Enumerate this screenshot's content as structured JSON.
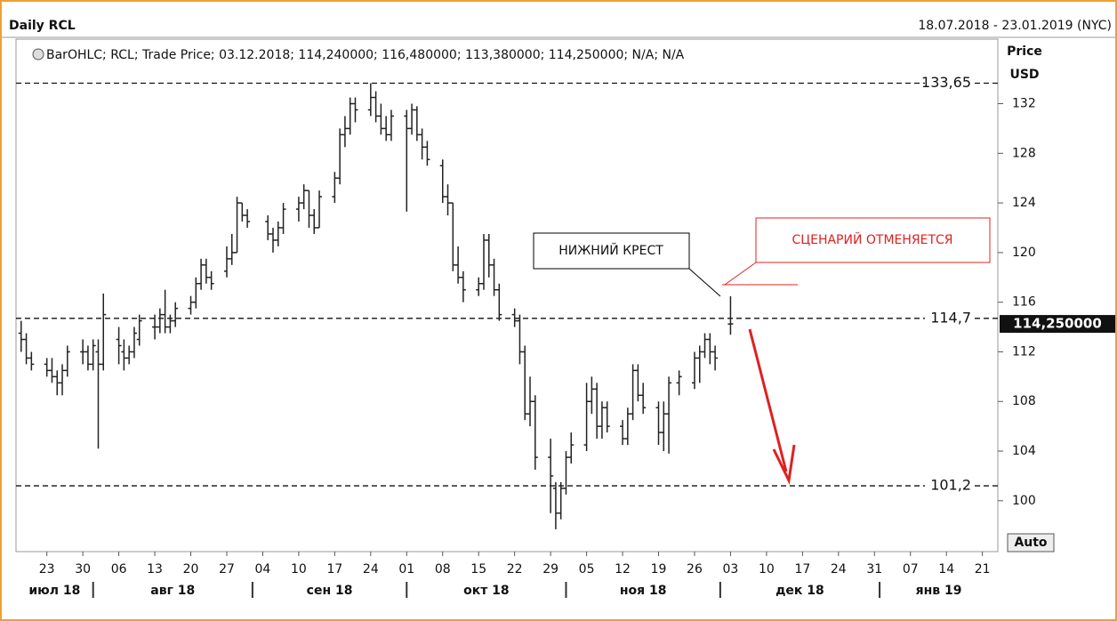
{
  "chart_data": {
    "type": "ohlc",
    "title": "Daily RCL",
    "range_text": "18.07.2018 - 23.01.2019 (NYC)",
    "legend_text": "BarOHLC; RCL; Trade Price; 03.12.2018; 114,240000; 116,480000; 113,380000; 114,250000; N/A; N/A",
    "y_axis_label": "Price",
    "y_axis_unit": "USD",
    "auto_button": "Auto",
    "color": "#222222",
    "x": [
      "2018-07-18",
      "2018-07-19",
      "2018-07-20",
      "2018-07-23",
      "2018-07-24",
      "2018-07-25",
      "2018-07-26",
      "2018-07-27",
      "2018-07-30",
      "2018-07-31",
      "2018-08-01",
      "2018-08-02",
      "2018-08-03",
      "2018-08-06",
      "2018-08-07",
      "2018-08-08",
      "2018-08-09",
      "2018-08-10",
      "2018-08-13",
      "2018-08-14",
      "2018-08-15",
      "2018-08-16",
      "2018-08-17",
      "2018-08-20",
      "2018-08-21",
      "2018-08-22",
      "2018-08-23",
      "2018-08-24",
      "2018-08-27",
      "2018-08-28",
      "2018-08-29",
      "2018-08-30",
      "2018-08-31",
      "2018-09-04",
      "2018-09-05",
      "2018-09-06",
      "2018-09-07",
      "2018-09-10",
      "2018-09-11",
      "2018-09-12",
      "2018-09-13",
      "2018-09-14",
      "2018-09-17",
      "2018-09-18",
      "2018-09-19",
      "2018-09-20",
      "2018-09-21",
      "2018-09-24",
      "2018-09-25",
      "2018-09-26",
      "2018-09-27",
      "2018-09-28",
      "2018-10-01",
      "2018-10-02",
      "2018-10-03",
      "2018-10-04",
      "2018-10-05",
      "2018-10-08",
      "2018-10-09",
      "2018-10-10",
      "2018-10-11",
      "2018-10-12",
      "2018-10-15",
      "2018-10-16",
      "2018-10-17",
      "2018-10-18",
      "2018-10-19",
      "2018-10-22",
      "2018-10-23",
      "2018-10-24",
      "2018-10-25",
      "2018-10-26",
      "2018-10-29",
      "2018-10-30",
      "2018-10-31",
      "2018-11-01",
      "2018-11-02",
      "2018-11-05",
      "2018-11-06",
      "2018-11-07",
      "2018-11-08",
      "2018-11-09",
      "2018-11-12",
      "2018-11-13",
      "2018-11-14",
      "2018-11-15",
      "2018-11-16",
      "2018-11-19",
      "2018-11-20",
      "2018-11-21",
      "2018-11-23",
      "2018-11-26",
      "2018-11-27",
      "2018-11-28",
      "2018-11-29",
      "2018-11-30",
      "2018-12-03"
    ],
    "ohlc": [
      [
        113.5,
        114.5,
        112,
        113
      ],
      [
        113,
        113.5,
        111,
        111.5
      ],
      [
        111.5,
        112,
        110.5,
        111
      ],
      [
        111,
        111.5,
        110,
        110.5
      ],
      [
        110.5,
        111.5,
        109.5,
        110
      ],
      [
        110,
        110.5,
        108.5,
        109.5
      ],
      [
        109.5,
        111,
        108.5,
        110.5
      ],
      [
        110.5,
        112.5,
        110,
        112
      ],
      [
        112,
        113,
        111,
        112
      ],
      [
        112,
        112.5,
        110.5,
        111
      ],
      [
        111,
        113,
        110.5,
        112.5
      ],
      [
        112,
        113,
        104.2,
        111
      ],
      [
        111,
        116.7,
        110.5,
        115
      ],
      [
        113,
        114,
        111,
        112.5
      ],
      [
        112,
        113,
        110.5,
        111.5
      ],
      [
        111.5,
        112.5,
        111,
        112
      ],
      [
        112,
        114,
        111.5,
        113.5
      ],
      [
        113,
        115,
        112.5,
        114.5
      ],
      [
        114,
        115,
        113,
        114
      ],
      [
        114,
        115.5,
        113.5,
        115
      ],
      [
        115,
        117,
        113.5,
        114
      ],
      [
        114,
        115,
        113.5,
        114.5
      ],
      [
        114.5,
        116,
        114,
        115.5
      ],
      [
        115.5,
        116.5,
        115,
        116
      ],
      [
        116,
        118,
        115.5,
        117.5
      ],
      [
        117.5,
        119.5,
        117,
        119
      ],
      [
        119,
        119.5,
        117.5,
        118
      ],
      [
        118,
        118.5,
        117,
        117.5
      ],
      [
        118.5,
        120.5,
        118,
        119.5
      ],
      [
        119.5,
        121.5,
        119,
        120
      ],
      [
        120,
        124.5,
        120,
        124
      ],
      [
        124,
        124,
        122.5,
        123
      ],
      [
        123,
        123.5,
        122,
        122.5
      ],
      [
        122.5,
        123,
        121,
        121.5
      ],
      [
        121.5,
        122,
        120,
        121
      ],
      [
        121,
        122.5,
        120.5,
        122
      ],
      [
        122,
        124,
        121.5,
        123.5
      ],
      [
        123.5,
        124.5,
        122.5,
        124
      ],
      [
        124,
        125.5,
        123.5,
        125
      ],
      [
        125,
        125,
        122,
        123
      ],
      [
        123,
        123.5,
        121.5,
        122
      ],
      [
        122,
        125,
        122,
        124.5
      ],
      [
        124.5,
        126.5,
        124,
        126
      ],
      [
        126,
        130,
        125.5,
        129.5
      ],
      [
        129.5,
        131,
        128.5,
        130
      ],
      [
        130,
        132.5,
        129.5,
        132
      ],
      [
        132,
        132.5,
        130.5,
        131.5
      ],
      [
        131.5,
        133.65,
        131,
        132.5
      ],
      [
        132.5,
        133,
        130.5,
        131
      ],
      [
        131,
        132,
        129.5,
        130
      ],
      [
        130,
        131,
        129,
        129.5
      ],
      [
        129.5,
        131.5,
        129,
        131
      ],
      [
        131,
        131.5,
        123.3,
        130
      ],
      [
        130,
        132,
        129.5,
        131.5
      ],
      [
        131.5,
        131.8,
        129,
        129.5
      ],
      [
        129.5,
        130,
        127.5,
        128.5
      ],
      [
        128.5,
        129,
        127,
        127.5
      ],
      [
        127,
        127.5,
        124,
        124.5
      ],
      [
        124.5,
        125.5,
        123,
        124
      ],
      [
        124,
        124,
        118.5,
        119
      ],
      [
        119,
        120.5,
        117.5,
        118
      ],
      [
        118,
        118.5,
        116,
        117
      ],
      [
        117,
        118,
        116.5,
        117.5
      ],
      [
        117.5,
        121.5,
        117,
        121
      ],
      [
        121,
        121.5,
        118,
        119
      ],
      [
        119,
        119.5,
        116.5,
        117
      ],
      [
        117,
        117.5,
        114.5,
        115
      ],
      [
        115,
        115.5,
        114,
        114.5
      ],
      [
        114.5,
        115,
        111,
        112
      ],
      [
        112,
        112.5,
        106.5,
        107
      ],
      [
        107,
        110,
        106,
        108
      ],
      [
        108,
        108.5,
        102.5,
        103.5
      ],
      [
        103.5,
        105,
        99,
        102
      ],
      [
        101,
        101.5,
        97.7,
        99
      ],
      [
        99,
        101.5,
        98.5,
        101
      ],
      [
        101,
        104,
        100.5,
        103.5
      ],
      [
        103.5,
        105.5,
        103,
        104.5
      ],
      [
        104.5,
        109.5,
        104,
        108
      ],
      [
        108,
        110,
        107,
        109
      ],
      [
        109,
        109.5,
        105,
        106
      ],
      [
        106,
        108,
        105,
        107.5
      ],
      [
        107.5,
        108,
        105.5,
        106
      ],
      [
        106,
        106.5,
        104.5,
        105
      ],
      [
        105,
        107.5,
        104.5,
        107
      ],
      [
        107,
        111,
        106.5,
        110.5
      ],
      [
        110.5,
        111,
        108,
        108.5
      ],
      [
        108.5,
        109.5,
        107,
        107.5
      ],
      [
        107.5,
        108,
        104.5,
        105.5
      ],
      [
        105.5,
        108,
        104,
        107
      ],
      [
        107,
        110,
        103.8,
        109.5
      ],
      [
        109.5,
        110.5,
        108.5,
        110
      ],
      [
        109.5,
        112,
        109,
        111.5
      ],
      [
        111.5,
        112.5,
        109.5,
        112
      ],
      [
        112,
        113.5,
        111.5,
        113
      ],
      [
        113,
        113.5,
        111,
        112
      ],
      [
        112,
        112.5,
        110.5,
        111.5
      ],
      [
        114.24,
        116.48,
        113.38,
        114.25
      ]
    ],
    "xlim": [
      "2018-07-17",
      "2019-01-24"
    ],
    "ylim": [
      95.9,
      137.2
    ],
    "yticks": [
      100,
      104,
      108,
      112,
      116,
      120,
      124,
      128,
      132
    ],
    "xticks": [
      {
        "value": "2018-07-23",
        "label": "23"
      },
      {
        "value": "2018-07-30",
        "label": "30"
      },
      {
        "value": "2018-08-06",
        "label": "06"
      },
      {
        "value": "2018-08-13",
        "label": "13"
      },
      {
        "value": "2018-08-20",
        "label": "20"
      },
      {
        "value": "2018-08-27",
        "label": "27"
      },
      {
        "value": "2018-09-03",
        "label": "04"
      },
      {
        "value": "2018-09-10",
        "label": "10"
      },
      {
        "value": "2018-09-17",
        "label": "17"
      },
      {
        "value": "2018-09-24",
        "label": "24"
      },
      {
        "value": "2018-10-01",
        "label": "01"
      },
      {
        "value": "2018-10-08",
        "label": "08"
      },
      {
        "value": "2018-10-15",
        "label": "15"
      },
      {
        "value": "2018-10-22",
        "label": "22"
      },
      {
        "value": "2018-10-29",
        "label": "29"
      },
      {
        "value": "2018-11-05",
        "label": "05"
      },
      {
        "value": "2018-11-12",
        "label": "12"
      },
      {
        "value": "2018-11-19",
        "label": "19"
      },
      {
        "value": "2018-11-26",
        "label": "26"
      },
      {
        "value": "2018-12-03",
        "label": "03"
      },
      {
        "value": "2018-12-10",
        "label": "10"
      },
      {
        "value": "2018-12-17",
        "label": "17"
      },
      {
        "value": "2018-12-24",
        "label": "24"
      },
      {
        "value": "2018-12-31",
        "label": "31"
      },
      {
        "value": "2019-01-07",
        "label": "07"
      },
      {
        "value": "2019-01-14",
        "label": "14"
      },
      {
        "value": "2019-01-21",
        "label": "21"
      }
    ],
    "months": [
      {
        "value": "2018-07-01",
        "label": "июл 18"
      },
      {
        "value": "2018-08-01",
        "label": "авг 18"
      },
      {
        "value": "2018-09-01",
        "label": "сен 18"
      },
      {
        "value": "2018-10-01",
        "label": "окт 18"
      },
      {
        "value": "2018-11-01",
        "label": "ноя 18"
      },
      {
        "value": "2018-12-01",
        "label": "дек 18"
      },
      {
        "value": "2019-01-01",
        "label": "янв 19"
      }
    ],
    "levels": [
      {
        "value": 133.65,
        "label": "133,65"
      },
      {
        "value": 114.7,
        "label": "114,7"
      },
      {
        "value": 101.2,
        "label": "101,2"
      }
    ],
    "last_price": {
      "value": 114.25,
      "label": "114,250000"
    },
    "annotations": [
      "НИЖНИЙ КРЕСТ",
      "СЦЕНАРИЙ ОТМЕНЯЕТСЯ"
    ]
  }
}
